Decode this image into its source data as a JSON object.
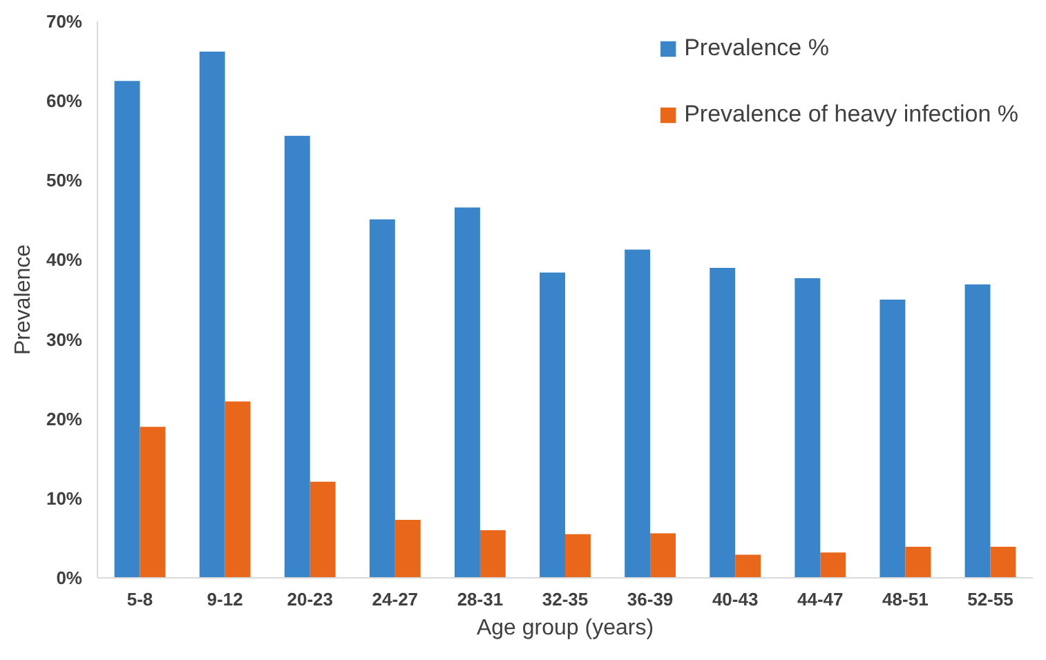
{
  "chart_data": {
    "type": "bar",
    "xlabel": "Age group (years)",
    "ylabel": "Prevalence",
    "categories": [
      "5-8",
      "9-12",
      "20-23",
      "24-27",
      "28-31",
      "32-35",
      "36-39",
      "40-43",
      "44-47",
      "48-51",
      "52-55"
    ],
    "series": [
      {
        "name": "Prevalence %",
        "color": "#3a85c9",
        "values": [
          62.5,
          66.2,
          55.6,
          45.1,
          46.6,
          38.4,
          41.3,
          39.0,
          37.7,
          35.0,
          36.9
        ]
      },
      {
        "name": "Prevalence of heavy infection %",
        "color": "#e8671a",
        "values": [
          19.0,
          22.2,
          12.1,
          7.3,
          6.0,
          5.5,
          5.6,
          2.9,
          3.2,
          3.9,
          3.9
        ]
      }
    ],
    "ylim": [
      0,
      70
    ],
    "yticks": [
      {
        "value": 0,
        "label": "0%"
      },
      {
        "value": 10,
        "label": "10%"
      },
      {
        "value": 20,
        "label": "20%"
      },
      {
        "value": 30,
        "label": "30%"
      },
      {
        "value": 40,
        "label": "40%"
      },
      {
        "value": 50,
        "label": "50%"
      },
      {
        "value": 60,
        "label": "60%"
      },
      {
        "value": 70,
        "label": "70%"
      }
    ],
    "grid": false,
    "legend": "top right"
  }
}
